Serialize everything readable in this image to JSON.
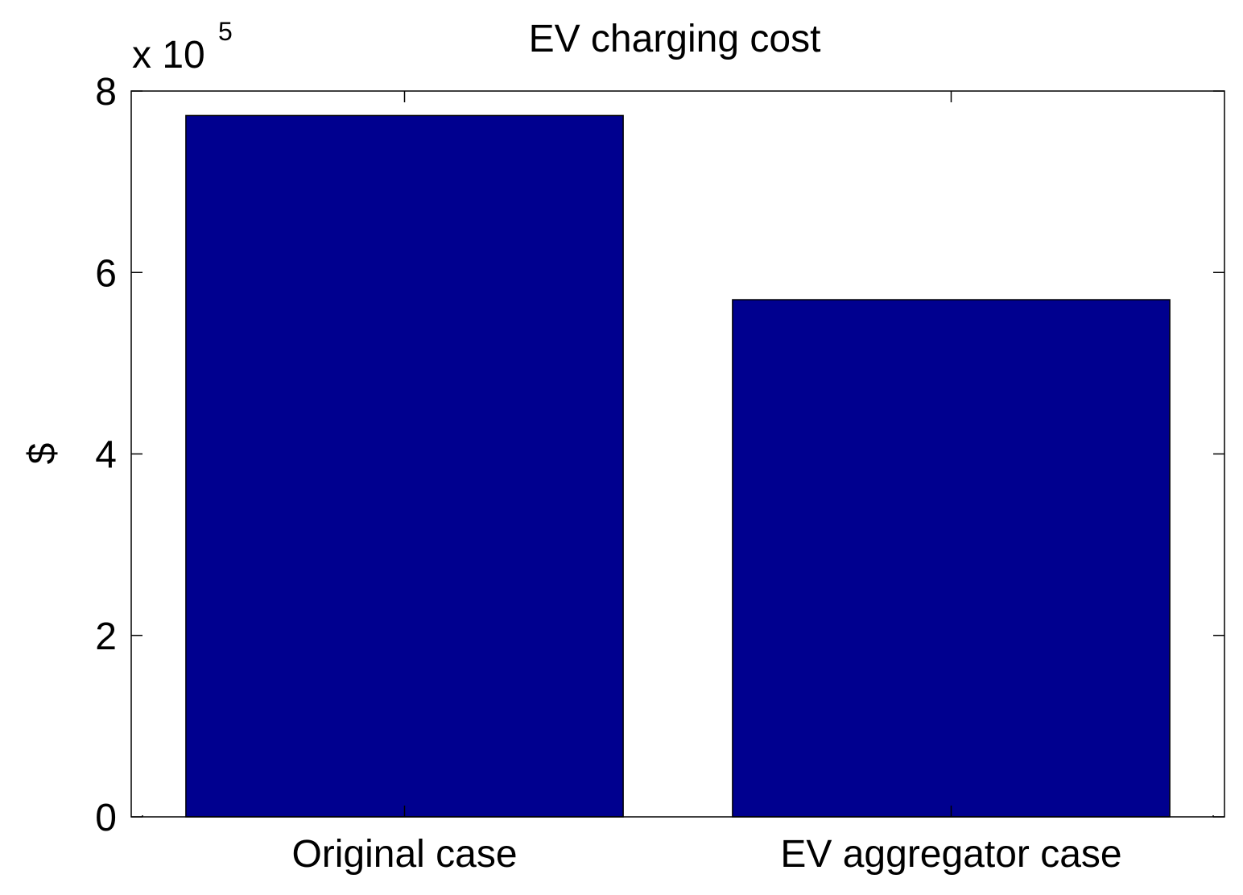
{
  "chart_data": {
    "type": "bar",
    "title": "EV charging cost",
    "xlabel": "",
    "ylabel": "$",
    "y_multiplier": {
      "base": "x 10",
      "exponent": "5"
    },
    "categories": [
      "Original case",
      "EV aggregator case"
    ],
    "values": [
      7.73,
      5.7
    ],
    "ylim": [
      0,
      8
    ],
    "yticks": [
      0,
      2,
      4,
      6,
      8
    ],
    "ytick_labels": [
      "0",
      "2",
      "4",
      "6",
      "8"
    ],
    "grid": false,
    "bar_color": "#00008f"
  }
}
